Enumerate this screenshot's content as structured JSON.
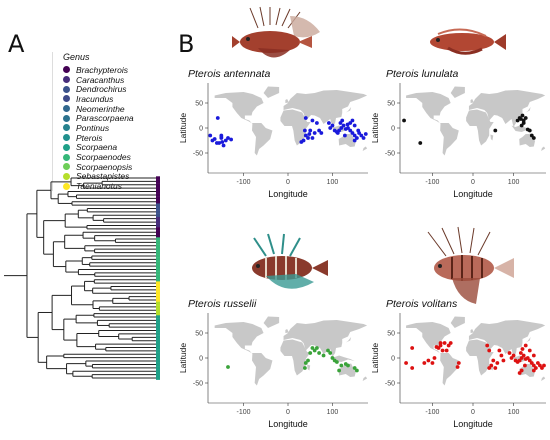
{
  "panels": {
    "a_label": "A",
    "b_label": "B"
  },
  "legend": {
    "title": "Genus",
    "items": [
      {
        "label": "Brachypterois",
        "color": "#440154"
      },
      {
        "label": "Caracanthus",
        "color": "#472d7b"
      },
      {
        "label": "Dendrochirus",
        "color": "#3b528b"
      },
      {
        "label": "Iracundus",
        "color": "#3e4a89"
      },
      {
        "label": "Neomerinthe",
        "color": "#31688e"
      },
      {
        "label": "Parascorpaena",
        "color": "#2c728e"
      },
      {
        "label": "Pontinus",
        "color": "#26828e"
      },
      {
        "label": "Pterois",
        "color": "#21908d"
      },
      {
        "label": "Scorpaena",
        "color": "#1fa088"
      },
      {
        "label": "Scorpaenodes",
        "color": "#35b779"
      },
      {
        "label": "Scorpaenopsis",
        "color": "#6ece58"
      },
      {
        "label": "Sebastapistes",
        "color": "#b5de2b"
      },
      {
        "label": "Taenianotus",
        "color": "#fde725"
      }
    ]
  },
  "maps": [
    {
      "species": "Pterois antennata",
      "point_color": "#1a1adb"
    },
    {
      "species": "Pterois lunulata",
      "point_color": "#111111"
    },
    {
      "species": "Pterois russelii",
      "point_color": "#3aa33a"
    },
    {
      "species": "Pterois volitans",
      "point_color": "#dd1111"
    }
  ],
  "axes": {
    "xlabel": "Longitude",
    "ylabel": "Latitude",
    "x_ticks": [
      "-100",
      "0",
      "100"
    ],
    "y_ticks": [
      "50",
      "0",
      "-50"
    ]
  },
  "fish_icons": [
    "lionfish-antennata-image",
    "lionfish-lunulata-image",
    "lionfish-russelii-image",
    "lionfish-volitans-image"
  ]
}
